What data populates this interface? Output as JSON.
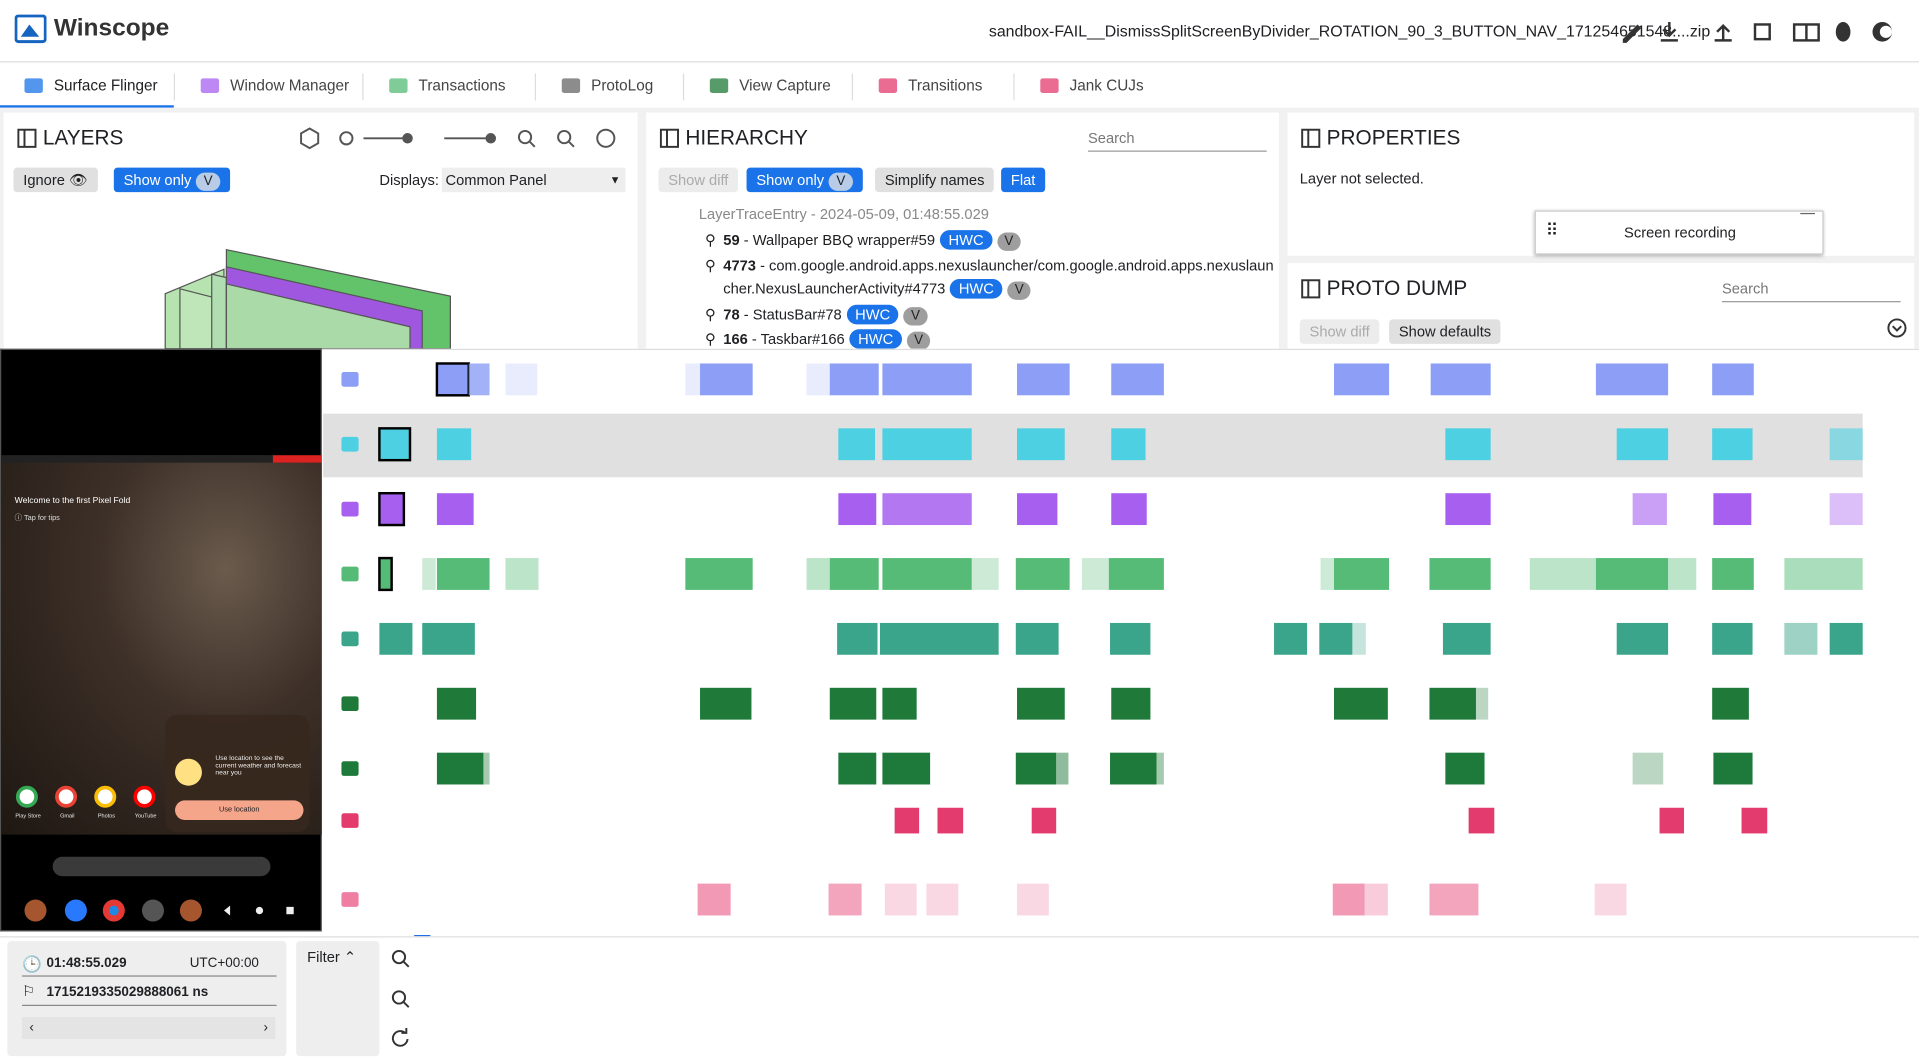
{
  "header": {
    "app": "Winscope",
    "file": "sandbox-FAIL__DismissSplitScreenByDivider_ROTATION_90_3_BUTTON_NAV_171254651548....zip"
  },
  "tabs": [
    "Surface Flinger",
    "Window Manager",
    "Transactions",
    "ProtoLog",
    "View Capture",
    "Transitions",
    "Jank CUJs"
  ],
  "layers": {
    "title": "LAYERS",
    "ignore": "Ignore",
    "show_only": "Show only",
    "v": "V",
    "displays_label": "Displays:",
    "display": "Common Panel"
  },
  "hierarchy": {
    "title": "HIERARCHY",
    "search": "Search",
    "buttons": [
      "Show diff",
      "Show only",
      "Simplify names",
      "Flat"
    ],
    "v": "V",
    "root": "LayerTraceEntry - 2024-05-09, 01:48:55.029",
    "items": [
      {
        "id": "59",
        "name": "- Wallpaper BBQ wrapper#59",
        "badge": "HWC"
      },
      {
        "id": "4773",
        "name": "- com.google.android.apps.nexuslauncher/com.google.android.apps.nexuslauncher.NexusLauncherActivity#4773",
        "badge": "HWC"
      },
      {
        "id": "78",
        "name": "- StatusBar#78",
        "badge": "HWC"
      },
      {
        "id": "166",
        "name": "- Taskbar#166",
        "badge": "HWC"
      }
    ]
  },
  "properties": {
    "title": "PROPERTIES",
    "empty": "Layer not selected.",
    "screen_recording": "Screen recording"
  },
  "proto_dump": {
    "title": "PROTO DUMP",
    "search": "Search",
    "buttons": [
      "Show diff",
      "Show defaults"
    ]
  },
  "phone": {
    "welcome": "Welcome to the first Pixel Fold",
    "tips": "Tap for tips",
    "weather": "Use location to see the current weather and forecast near you",
    "use_location": "Use location",
    "apps": [
      "Play Store",
      "Gmail",
      "Photos",
      "YouTube"
    ]
  },
  "timeline": {
    "time": "01:48:55.029",
    "timezone": "UTC+00:00",
    "ns": "1715219335029888061 ns",
    "filter": "Filter"
  }
}
